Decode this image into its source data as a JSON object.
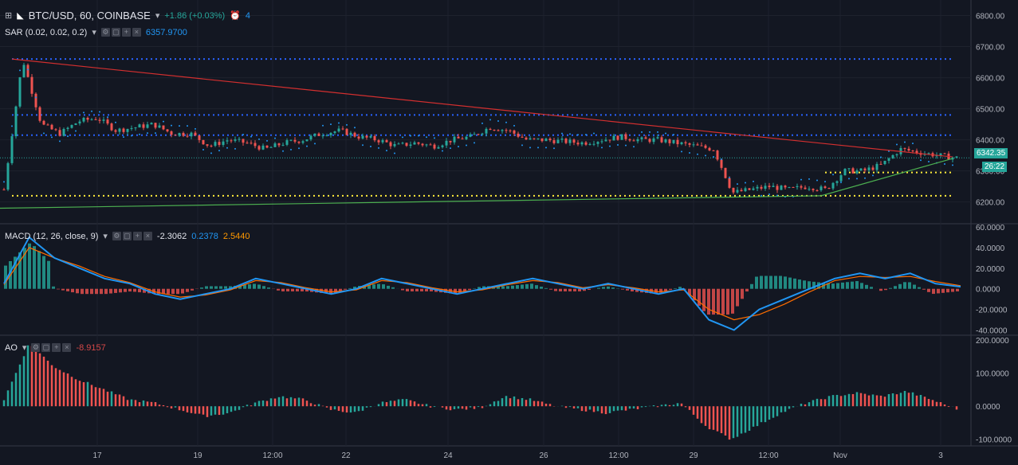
{
  "header": {
    "symbol": "BTC/USD, 60, COINBASE",
    "change": "+1.86 (+0.03%)",
    "alerts": "4"
  },
  "sar": {
    "label": "SAR (0.02, 0.02, 0.2)",
    "value": "6357.9700"
  },
  "macd": {
    "label": "MACD (12, 26, close, 9)",
    "hist": "-2.3062",
    "macd": "0.2378",
    "signal": "2.5440"
  },
  "ao": {
    "label": "AO",
    "value": "-8.9157"
  },
  "price_axis": {
    "ticks": [
      "6800.00",
      "6700.00",
      "6600.00",
      "6500.00",
      "6400.00",
      "6300.00",
      "6200.00"
    ],
    "last_price": "6342.35",
    "countdown": "26:22"
  },
  "macd_axis": {
    "ticks": [
      "60.0000",
      "40.0000",
      "20.0000",
      "0.0000",
      "-20.0000",
      "-40.0000"
    ]
  },
  "ao_axis": {
    "ticks": [
      "200.0000",
      "100.0000",
      "0.0000",
      "-100.0000"
    ]
  },
  "time_axis": [
    "17",
    "19",
    "12:00",
    "22",
    "24",
    "26",
    "12:00",
    "29",
    "12:00",
    "Nov",
    "3"
  ],
  "colors": {
    "background": "#131722",
    "up": "#26a69a",
    "down": "#ef5350",
    "sar": "#2196f3",
    "macd_line": "#2196f3",
    "signal_line": "#ff6d00",
    "resistance": "#d32f2f",
    "support": "#4caf50",
    "dotted_yellow": "#ffeb3b",
    "dotted_blue": "#2962ff"
  },
  "chart_data": {
    "type": "candlestick",
    "price_range": [
      6130,
      6850
    ],
    "close_series": [
      6240,
      6660,
      6450,
      6420,
      6460,
      6470,
      6430,
      6440,
      6450,
      6420,
      6420,
      6380,
      6400,
      6390,
      6370,
      6390,
      6400,
      6420,
      6430,
      6410,
      6400,
      6380,
      6390,
      6380,
      6400,
      6410,
      6440,
      6430,
      6400,
      6400,
      6395,
      6390,
      6400,
      6410,
      6400,
      6400,
      6390,
      6380,
      6370,
      6230,
      6240,
      6250,
      6240,
      6250,
      6240,
      6300,
      6300,
      6320,
      6370,
      6360,
      6350,
      6342
    ],
    "macd_line": [
      5,
      50,
      30,
      20,
      10,
      5,
      -5,
      -10,
      -5,
      0,
      10,
      5,
      0,
      -5,
      0,
      10,
      5,
      0,
      -5,
      0,
      5,
      10,
      5,
      0,
      5,
      0,
      -5,
      0,
      -30,
      -40,
      -20,
      -10,
      0,
      10,
      15,
      10,
      15,
      5,
      2
    ],
    "signal_line": [
      4,
      40,
      30,
      22,
      12,
      6,
      -3,
      -8,
      -6,
      -1,
      8,
      6,
      1,
      -3,
      -1,
      8,
      6,
      1,
      -3,
      -1,
      4,
      8,
      6,
      1,
      4,
      1,
      -3,
      -1,
      -20,
      -30,
      -25,
      -15,
      -3,
      8,
      12,
      11,
      12,
      7,
      3
    ],
    "ao_values": [
      20,
      190,
      120,
      80,
      50,
      20,
      10,
      -10,
      -30,
      -20,
      10,
      30,
      20,
      -10,
      -20,
      10,
      20,
      0,
      -10,
      -5,
      30,
      20,
      0,
      -10,
      -20,
      -10,
      0,
      10,
      -60,
      -100,
      -60,
      -20,
      10,
      30,
      40,
      30,
      45,
      20,
      -8
    ]
  }
}
